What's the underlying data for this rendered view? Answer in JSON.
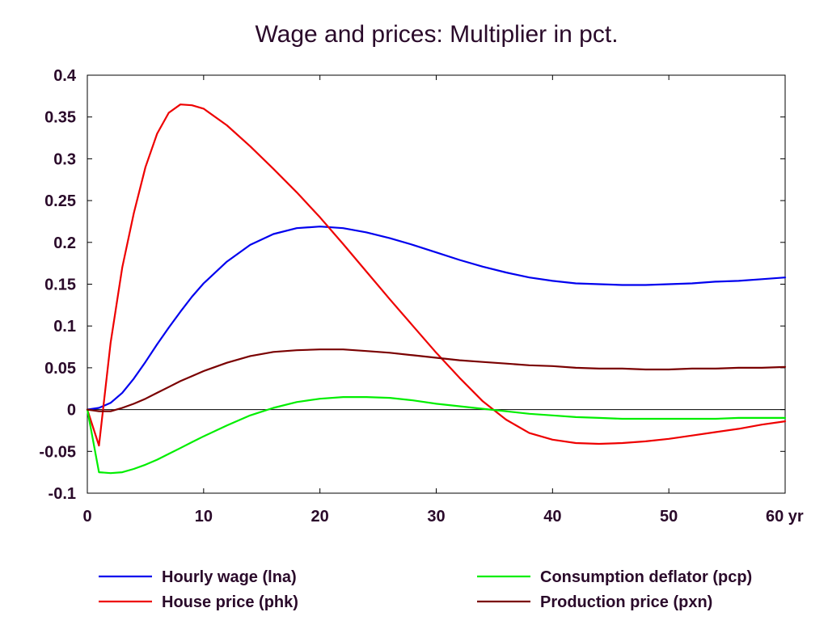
{
  "chart_data": {
    "type": "line",
    "title": "Wage and prices: Multiplier in pct.",
    "xlabel": "",
    "ylabel": "",
    "x_unit": "yr",
    "xlim": [
      0,
      60
    ],
    "ylim": [
      -0.1,
      0.4
    ],
    "xticks": [
      0,
      10,
      20,
      30,
      40,
      50,
      60
    ],
    "xtick_labels": [
      "0",
      "10",
      "20",
      "30",
      "40",
      "50",
      "60 yr"
    ],
    "yticks": [
      -0.1,
      -0.05,
      0,
      0.05,
      0.1,
      0.15,
      0.2,
      0.25,
      0.3,
      0.35,
      0.4
    ],
    "ytick_labels": [
      "-0.1",
      "-0.05",
      "0",
      "0.05",
      "0.1",
      "0.15",
      "0.2",
      "0.25",
      "0.3",
      "0.35",
      "0.4"
    ],
    "grid": false,
    "zero_line": true,
    "legend_position": "bottom",
    "x": [
      0,
      1,
      2,
      3,
      4,
      5,
      6,
      7,
      8,
      9,
      10,
      12,
      14,
      16,
      18,
      20,
      22,
      24,
      26,
      28,
      30,
      32,
      34,
      36,
      38,
      40,
      42,
      44,
      46,
      48,
      50,
      52,
      54,
      56,
      58,
      60
    ],
    "series": [
      {
        "name": "Hourly wage (lna)",
        "color": "#0000ee",
        "values": [
          0,
          0.002,
          0.008,
          0.02,
          0.037,
          0.057,
          0.078,
          0.098,
          0.117,
          0.135,
          0.151,
          0.177,
          0.197,
          0.21,
          0.217,
          0.219,
          0.217,
          0.212,
          0.205,
          0.197,
          0.188,
          0.179,
          0.171,
          0.164,
          0.158,
          0.154,
          0.151,
          0.15,
          0.149,
          0.149,
          0.15,
          0.151,
          0.153,
          0.154,
          0.156,
          0.158
        ]
      },
      {
        "name": "House price (phk)",
        "color": "#ee0000",
        "values": [
          0,
          -0.043,
          0.08,
          0.17,
          0.235,
          0.29,
          0.33,
          0.355,
          0.365,
          0.364,
          0.36,
          0.34,
          0.315,
          0.288,
          0.26,
          0.23,
          0.198,
          0.165,
          0.132,
          0.1,
          0.068,
          0.038,
          0.01,
          -0.012,
          -0.028,
          -0.036,
          -0.04,
          -0.041,
          -0.04,
          -0.038,
          -0.035,
          -0.031,
          -0.027,
          -0.023,
          -0.018,
          -0.014
        ]
      },
      {
        "name": "Consumption deflator (pcp)",
        "color": "#00ee00",
        "values": [
          0,
          -0.075,
          -0.076,
          -0.075,
          -0.071,
          -0.066,
          -0.06,
          -0.053,
          -0.046,
          -0.039,
          -0.032,
          -0.019,
          -0.007,
          0.002,
          0.009,
          0.013,
          0.015,
          0.015,
          0.014,
          0.011,
          0.007,
          0.004,
          0.001,
          -0.002,
          -0.005,
          -0.007,
          -0.009,
          -0.01,
          -0.011,
          -0.011,
          -0.011,
          -0.011,
          -0.011,
          -0.01,
          -0.01,
          -0.01
        ]
      },
      {
        "name": "Production price (pxn)",
        "color": "#7a0000",
        "values": [
          0,
          -0.002,
          -0.002,
          0.002,
          0.007,
          0.013,
          0.02,
          0.027,
          0.034,
          0.04,
          0.046,
          0.056,
          0.064,
          0.069,
          0.071,
          0.072,
          0.072,
          0.07,
          0.068,
          0.065,
          0.062,
          0.059,
          0.057,
          0.055,
          0.053,
          0.052,
          0.05,
          0.049,
          0.049,
          0.048,
          0.048,
          0.049,
          0.049,
          0.05,
          0.05,
          0.051
        ]
      }
    ]
  }
}
